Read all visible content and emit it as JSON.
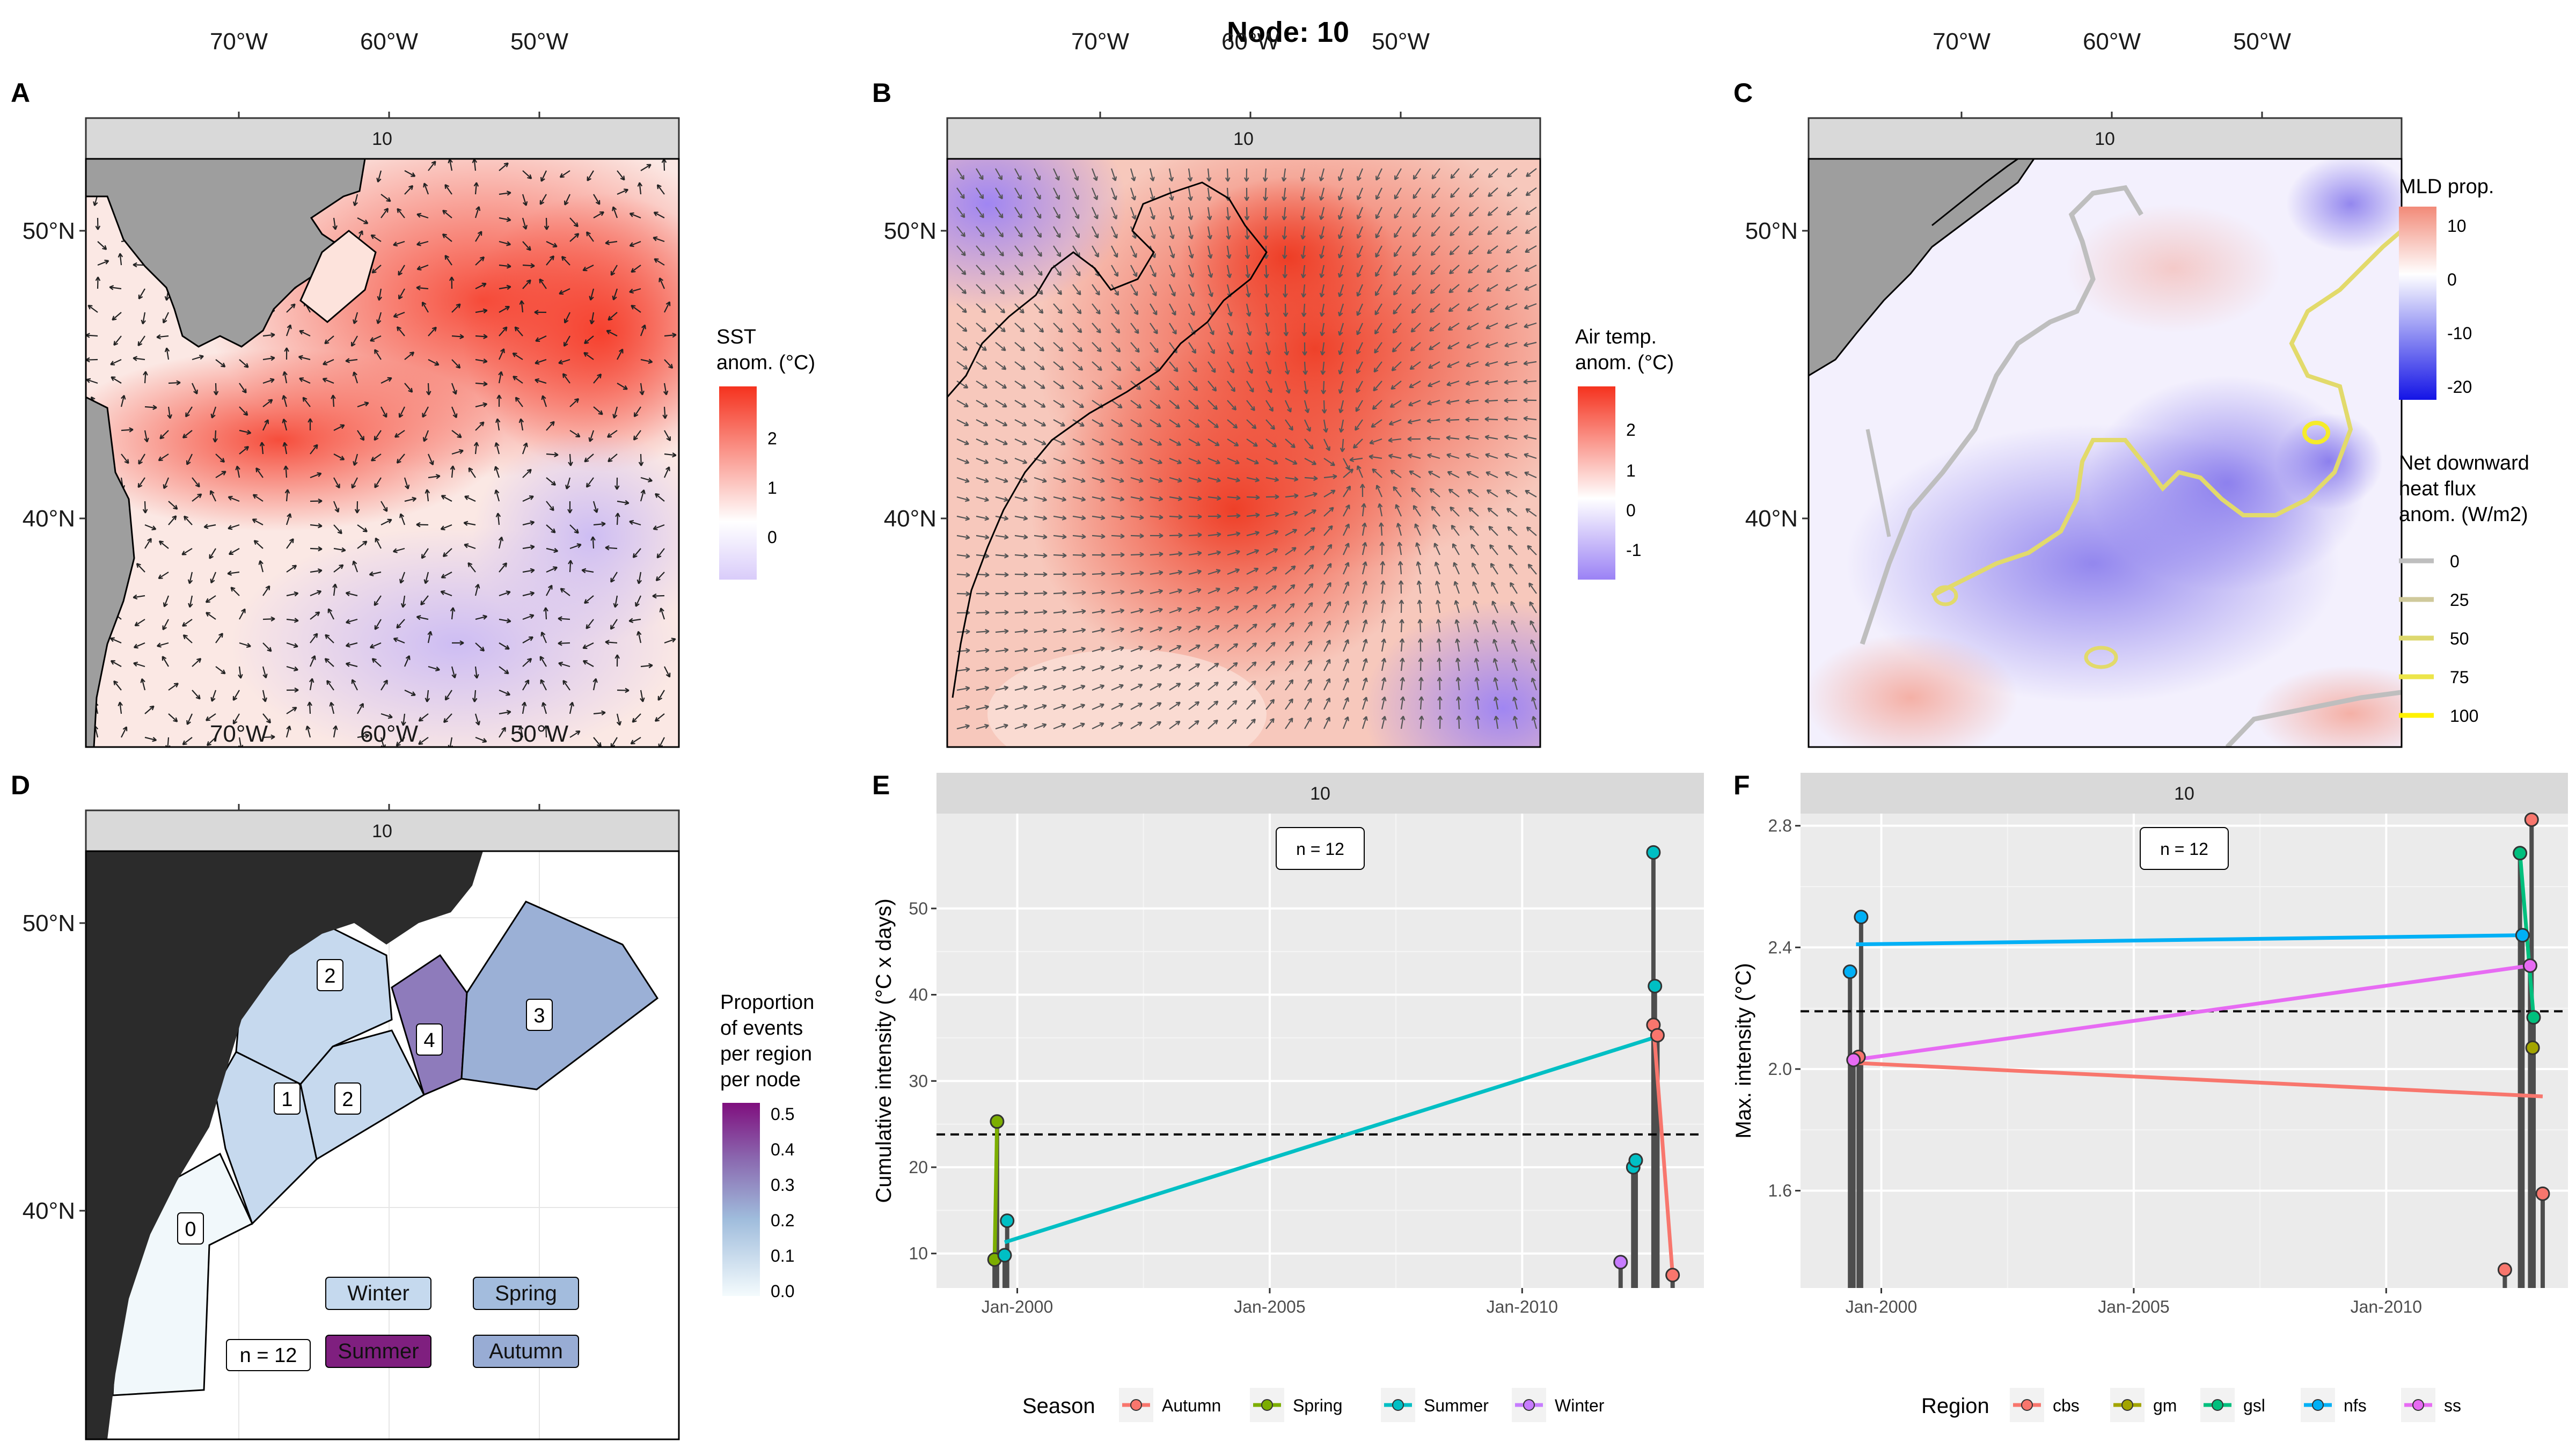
{
  "figure": {
    "title": "Node: 10",
    "strip_label": "10",
    "panel_letters": [
      "A",
      "B",
      "C",
      "D",
      "E",
      "F"
    ]
  },
  "map_axes": {
    "lon_ticks": [
      "70°W",
      "60°W",
      "50°W"
    ],
    "lat_ticks": [
      "50°N",
      "40°N"
    ]
  },
  "panel_a": {
    "legend_title": [
      "SST",
      "anom. (°C)"
    ],
    "legend_ticks": [
      "2",
      "1",
      "0"
    ],
    "colors": {
      "low": "#d9ccfa",
      "mid": "#ffffff",
      "high": "#f5321e"
    }
  },
  "panel_b": {
    "legend_title": [
      "Air temp.",
      "anom. (°C)"
    ],
    "legend_ticks": [
      "2",
      "1",
      "0",
      "-1"
    ],
    "colors": {
      "low": "#9b82f5",
      "mid": "#ffffff",
      "high": "#f5321e"
    }
  },
  "panel_c": {
    "legend_title": "MLD prop.",
    "legend_ticks": [
      "10",
      "0",
      "-10",
      "-20"
    ],
    "flux_title": [
      "Net downward",
      "heat flux",
      "anom. (W/m2)"
    ],
    "flux_levels": [
      "0",
      "25",
      "50",
      "75",
      "100"
    ],
    "flux_colors": [
      "#bebebe",
      "#cfc99b",
      "#ddd86e",
      "#ece54a",
      "#fff200"
    ],
    "colors": {
      "low": "#1414e6",
      "mid": "#ffffff",
      "high": "#f28a78"
    }
  },
  "panel_d": {
    "legend_title": [
      "Proportion",
      "of events",
      "per region",
      "per node"
    ],
    "legend_ticks": [
      "0.5",
      "0.4",
      "0.3",
      "0.2",
      "0.1",
      "0.0"
    ],
    "region_labels": [
      "0",
      "1",
      "2",
      "2",
      "3",
      "4"
    ],
    "n_label": "n = 12",
    "seasons": [
      {
        "name": "Winter",
        "color": "#c5d9ee"
      },
      {
        "name": "Spring",
        "color": "#a3bcdd"
      },
      {
        "name": "Summer",
        "color": "#7f1f7f"
      },
      {
        "name": "Autumn",
        "color": "#98acd4"
      }
    ]
  },
  "chart_data": [
    {
      "type": "scatter",
      "panel": "E",
      "ylabel": "Cumulative intensity (°C x days)",
      "ylim": [
        6,
        61
      ],
      "yticks": [
        10,
        20,
        30,
        40,
        50
      ],
      "xticks": [
        "Jan-2000",
        "Jan-2005",
        "Jan-2010"
      ],
      "xtick_years": [
        2000,
        2005,
        2010
      ],
      "xlim": [
        1998.4,
        2013.6
      ],
      "n_label": "n = 12",
      "threshold": 23.8,
      "legend_title": "Season",
      "series": [
        {
          "name": "Autumn",
          "color": "#f8766d",
          "points": [
            [
              2012.6,
              36.5
            ],
            [
              2012.68,
              35.3
            ],
            [
              2012.98,
              7.5
            ]
          ],
          "trend": [
            [
              2012.6,
              36.5
            ],
            [
              2012.98,
              7.5
            ]
          ]
        },
        {
          "name": "Spring",
          "color": "#7cae00",
          "points": [
            [
              1999.6,
              25.3
            ],
            [
              1999.55,
              9.3
            ]
          ],
          "trend": [
            [
              1999.55,
              9.3
            ],
            [
              1999.6,
              25.3
            ]
          ]
        },
        {
          "name": "Summer",
          "color": "#00bfc4",
          "points": [
            [
              1999.8,
              13.8
            ],
            [
              1999.75,
              9.8
            ],
            [
              2012.2,
              20.0
            ],
            [
              2012.25,
              20.8
            ],
            [
              2012.6,
              56.5
            ],
            [
              2012.63,
              41.0
            ]
          ],
          "trend": [
            [
              1999.75,
              11.3
            ],
            [
              2012.6,
              35.0
            ]
          ]
        },
        {
          "name": "Winter",
          "color": "#c77cff",
          "points": [
            [
              2011.95,
              9.0
            ]
          ],
          "trend": []
        }
      ]
    },
    {
      "type": "scatter",
      "panel": "F",
      "ylabel": "Max. intensity (°C)",
      "ylim": [
        1.28,
        2.84
      ],
      "yticks": [
        1.6,
        2.0,
        2.4,
        2.8
      ],
      "ytick_labels": [
        "1.6",
        "2.0",
        "2.4",
        "2.8"
      ],
      "xticks": [
        "Jan-2000",
        "Jan-2005",
        "Jan-2010"
      ],
      "xtick_years": [
        2000,
        2005,
        2010
      ],
      "xlim": [
        1998.4,
        2013.6
      ],
      "n_label": "n = 12",
      "threshold": 2.19,
      "legend_title": "Region",
      "series": [
        {
          "name": "cbs",
          "color": "#f8766d",
          "points": [
            [
              2012.35,
              1.34
            ],
            [
              2012.88,
              2.82
            ],
            [
              2013.1,
              1.59
            ],
            [
              1999.55,
              2.04
            ]
          ],
          "trend": [
            [
              1999.5,
              2.02
            ],
            [
              2013.1,
              1.91
            ]
          ]
        },
        {
          "name": "gm",
          "color": "#a3a500",
          "points": [
            [
              2012.9,
              2.07
            ]
          ],
          "trend": []
        },
        {
          "name": "gsl",
          "color": "#00bf7d",
          "points": [
            [
              2012.65,
              2.71
            ],
            [
              2012.92,
              2.17
            ]
          ],
          "trend": [
            [
              2012.65,
              2.71
            ],
            [
              2012.92,
              2.17
            ]
          ]
        },
        {
          "name": "nfs",
          "color": "#00b0f6",
          "points": [
            [
              1999.38,
              2.32
            ],
            [
              1999.6,
              2.5
            ],
            [
              2012.7,
              2.44
            ]
          ],
          "trend": [
            [
              1999.5,
              2.41
            ],
            [
              2012.7,
              2.44
            ]
          ]
        },
        {
          "name": "ss",
          "color": "#e76bf3",
          "points": [
            [
              1999.45,
              2.03
            ],
            [
              2012.85,
              2.34
            ]
          ],
          "trend": [
            [
              1999.45,
              2.03
            ],
            [
              2012.85,
              2.34
            ]
          ]
        }
      ]
    }
  ]
}
